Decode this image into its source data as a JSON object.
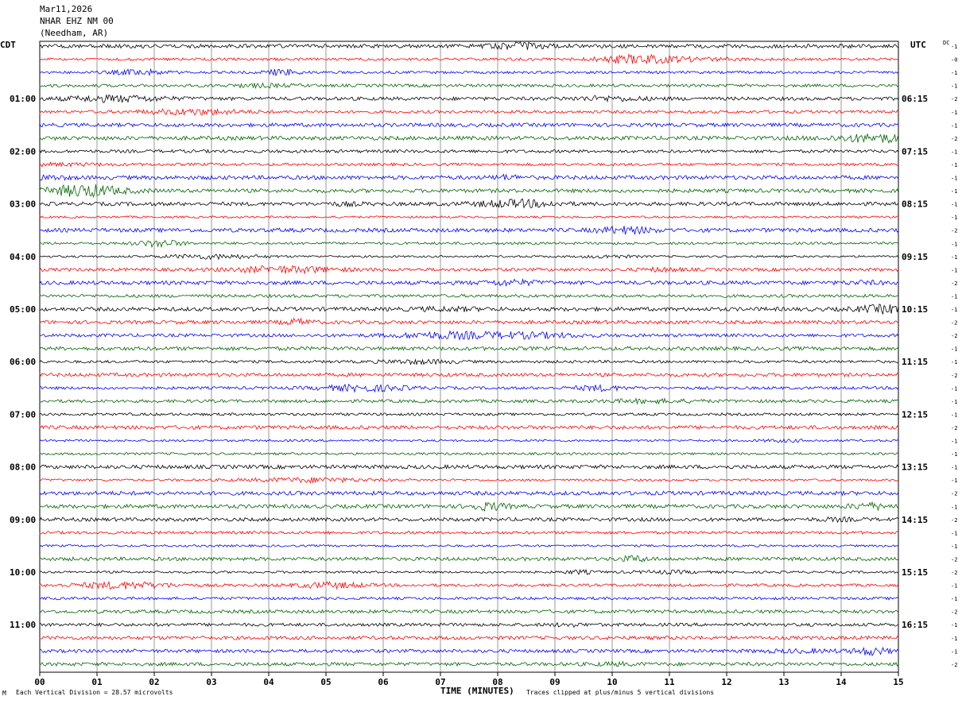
{
  "header": {
    "date": "Mar11,2026",
    "station": "NHAR EHZ NM 00",
    "location": "(Needham, AR)"
  },
  "left_axis_title": "CDT",
  "right_axis_title": "UTC",
  "dc_title": "DC",
  "footer": {
    "scale_note": "Each Vertical Division =   28.57 microvolts",
    "x_axis_title": "TIME (MINUTES)",
    "clip_note": "Traces clipped at plus/minus 5 vertical divisions",
    "corner_mark": "M"
  },
  "colors": {
    "trace_cycle": [
      "#000000",
      "#ff0000",
      "#0000ff",
      "#006400"
    ],
    "grid": "#000000"
  },
  "chart_data": {
    "type": "line",
    "x_range": [
      0,
      15
    ],
    "x_tick_labels": [
      "00",
      "01",
      "02",
      "03",
      "04",
      "05",
      "06",
      "07",
      "08",
      "09",
      "10",
      "11",
      "12",
      "13",
      "14",
      "15"
    ],
    "cdt_hour_labels": [
      "01:00",
      "02:00",
      "03:00",
      "04:00",
      "05:00",
      "06:00",
      "07:00",
      "08:00",
      "09:00",
      "10:00",
      "11:00"
    ],
    "utc_hour_labels": [
      "06:15",
      "07:15",
      "08:15",
      "09:15",
      "10:15",
      "11:15",
      "12:15",
      "13:15",
      "14:15",
      "15:15",
      "16:15"
    ],
    "trace_count": 48,
    "dc_offsets": [
      "-1",
      "-0",
      "-1",
      "-1",
      "-2",
      "-1",
      "-1",
      "-2",
      "-1",
      "-1",
      "-1",
      "-1",
      "-1",
      "-1",
      "-2",
      "-1",
      "-1",
      "-1",
      "-2",
      "-1",
      "-1",
      "-2",
      "-2",
      "-1",
      "-1",
      "-2",
      "-1",
      "-1",
      "-1",
      "-2",
      "-1",
      "-1",
      "-1",
      "-1",
      "-2",
      "-1",
      "-2",
      "-1",
      "-1",
      "-2",
      "-2",
      "-1",
      "-1",
      "-2",
      "-1",
      "-1",
      "-1",
      "-2"
    ]
  }
}
